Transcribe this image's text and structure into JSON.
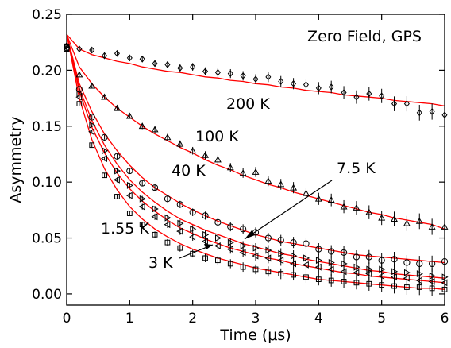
{
  "chart_data": {
    "type": "scatter",
    "title": "Zero Field, GPS",
    "xlabel": "Time (μs)",
    "ylabel": "Asymmetry",
    "xlim": [
      0,
      6
    ],
    "ylim": [
      -0.01,
      0.25
    ],
    "xticks": [
      "0",
      "1",
      "2",
      "3",
      "4",
      "5",
      "6"
    ],
    "yticks": [
      "0.00",
      "0.05",
      "0.10",
      "0.15",
      "0.20",
      "0.25"
    ],
    "grid": false,
    "fit_color": "#ff0000",
    "series": [
      {
        "name": "200 K",
        "marker": "diamond",
        "x": [
          0.0,
          0.2,
          0.4,
          0.6,
          0.8,
          1.0,
          1.2,
          1.4,
          1.6,
          1.8,
          2.0,
          2.2,
          2.4,
          2.6,
          2.8,
          3.0,
          3.2,
          3.4,
          3.6,
          3.8,
          4.0,
          4.2,
          4.4,
          4.6,
          4.8,
          5.0,
          5.2,
          5.4,
          5.6,
          5.8,
          6.0
        ],
        "y": [
          0.222,
          0.219,
          0.218,
          0.213,
          0.215,
          0.211,
          0.21,
          0.206,
          0.205,
          0.202,
          0.203,
          0.199,
          0.198,
          0.197,
          0.195,
          0.192,
          0.194,
          0.19,
          0.188,
          0.187,
          0.184,
          0.185,
          0.18,
          0.176,
          0.179,
          0.177,
          0.17,
          0.17,
          0.162,
          0.163,
          0.16
        ],
        "fit_y": [
          0.232,
          0.219,
          0.214,
          0.211,
          0.208,
          0.206,
          0.203,
          0.201,
          0.199,
          0.198,
          0.196,
          0.194,
          0.193,
          0.191,
          0.19,
          0.188,
          0.187,
          0.185,
          0.184,
          0.182,
          0.181,
          0.18,
          0.178,
          0.177,
          0.176,
          0.175,
          0.173,
          0.172,
          0.171,
          0.17,
          0.168
        ]
      },
      {
        "name": "100 K",
        "marker": "triangle-up",
        "x": [
          0.0,
          0.2,
          0.4,
          0.6,
          0.8,
          1.0,
          1.2,
          1.4,
          1.6,
          1.8,
          2.0,
          2.2,
          2.4,
          2.6,
          2.8,
          3.0,
          3.2,
          3.4,
          3.6,
          3.8,
          4.0,
          4.2,
          4.4,
          4.6,
          4.8,
          5.0,
          5.2,
          5.4,
          5.6,
          5.8,
          6.0
        ],
        "y": [
          0.222,
          0.196,
          0.186,
          0.176,
          0.166,
          0.159,
          0.15,
          0.147,
          0.14,
          0.134,
          0.128,
          0.124,
          0.12,
          0.113,
          0.108,
          0.109,
          0.101,
          0.098,
          0.095,
          0.09,
          0.085,
          0.084,
          0.078,
          0.077,
          0.073,
          0.068,
          0.067,
          0.063,
          0.065,
          0.06,
          0.06
        ],
        "fit_y": [
          0.232,
          0.203,
          0.188,
          0.176,
          0.166,
          0.158,
          0.15,
          0.143,
          0.137,
          0.131,
          0.126,
          0.12,
          0.115,
          0.111,
          0.106,
          0.102,
          0.098,
          0.095,
          0.091,
          0.088,
          0.085,
          0.082,
          0.079,
          0.076,
          0.073,
          0.071,
          0.068,
          0.066,
          0.064,
          0.062,
          0.058
        ]
      },
      {
        "name": "40 K",
        "marker": "circle",
        "x": [
          0.0,
          0.2,
          0.4,
          0.6,
          0.8,
          1.0,
          1.2,
          1.4,
          1.6,
          1.8,
          2.0,
          2.2,
          2.4,
          2.6,
          2.8,
          3.0,
          3.2,
          3.4,
          3.6,
          3.8,
          4.0,
          4.2,
          4.4,
          4.6,
          4.8,
          5.0,
          5.2,
          5.4,
          5.6,
          5.8,
          6.0
        ],
        "y": [
          0.22,
          0.183,
          0.158,
          0.14,
          0.123,
          0.11,
          0.099,
          0.095,
          0.085,
          0.08,
          0.073,
          0.07,
          0.064,
          0.06,
          0.058,
          0.055,
          0.05,
          0.048,
          0.046,
          0.045,
          0.04,
          0.038,
          0.037,
          0.033,
          0.033,
          0.03,
          0.031,
          0.028,
          0.027,
          0.027,
          0.029
        ],
        "fit_y": [
          0.232,
          0.188,
          0.163,
          0.143,
          0.128,
          0.115,
          0.104,
          0.095,
          0.088,
          0.081,
          0.075,
          0.07,
          0.065,
          0.061,
          0.057,
          0.053,
          0.05,
          0.047,
          0.045,
          0.043,
          0.041,
          0.039,
          0.037,
          0.035,
          0.034,
          0.033,
          0.032,
          0.031,
          0.03,
          0.029,
          0.028
        ]
      },
      {
        "name": "7.5 K",
        "marker": "triangle-right",
        "x": [
          0.0,
          0.2,
          0.4,
          0.6,
          0.8,
          1.0,
          1.2,
          1.4,
          1.6,
          1.8,
          2.0,
          2.2,
          2.4,
          2.6,
          2.8,
          3.0,
          3.2,
          3.4,
          3.6,
          3.8,
          4.0,
          4.2,
          4.4,
          4.6,
          4.8,
          5.0,
          5.2,
          5.4,
          5.6,
          5.8,
          6.0
        ],
        "y": [
          0.221,
          0.179,
          0.151,
          0.128,
          0.11,
          0.097,
          0.085,
          0.076,
          0.068,
          0.063,
          0.058,
          0.053,
          0.05,
          0.046,
          0.043,
          0.041,
          0.039,
          0.036,
          0.034,
          0.032,
          0.03,
          0.028,
          0.027,
          0.024,
          0.022,
          0.022,
          0.02,
          0.019,
          0.018,
          0.016,
          0.015
        ],
        "fit_y": [
          0.232,
          0.184,
          0.155,
          0.133,
          0.116,
          0.102,
          0.091,
          0.082,
          0.074,
          0.067,
          0.062,
          0.057,
          0.053,
          0.049,
          0.045,
          0.042,
          0.039,
          0.036,
          0.034,
          0.031,
          0.029,
          0.027,
          0.025,
          0.023,
          0.021,
          0.02,
          0.018,
          0.017,
          0.016,
          0.015,
          0.014
        ]
      },
      {
        "name": "1.55 K",
        "marker": "triangle-left",
        "x": [
          0.0,
          0.2,
          0.4,
          0.6,
          0.8,
          1.0,
          1.2,
          1.4,
          1.6,
          1.8,
          2.0,
          2.2,
          2.4,
          2.6,
          2.8,
          3.0,
          3.2,
          3.4,
          3.6,
          3.8,
          4.0,
          4.2,
          4.4,
          4.6,
          4.8,
          5.0,
          5.2,
          5.4,
          5.6,
          5.8,
          6.0
        ],
        "y": [
          0.22,
          0.176,
          0.145,
          0.121,
          0.102,
          0.088,
          0.078,
          0.069,
          0.062,
          0.056,
          0.051,
          0.047,
          0.043,
          0.04,
          0.037,
          0.034,
          0.032,
          0.03,
          0.027,
          0.026,
          0.024,
          0.022,
          0.02,
          0.019,
          0.018,
          0.016,
          0.015,
          0.014,
          0.012,
          0.011,
          0.01
        ],
        "fit_y": [
          0.232,
          0.181,
          0.149,
          0.126,
          0.108,
          0.094,
          0.083,
          0.074,
          0.066,
          0.059,
          0.054,
          0.049,
          0.045,
          0.041,
          0.038,
          0.035,
          0.032,
          0.03,
          0.027,
          0.025,
          0.023,
          0.021,
          0.019,
          0.018,
          0.016,
          0.015,
          0.014,
          0.013,
          0.012,
          0.011,
          0.01
        ]
      },
      {
        "name": "3 K",
        "marker": "square",
        "x": [
          0.0,
          0.2,
          0.4,
          0.6,
          0.8,
          1.0,
          1.2,
          1.4,
          1.6,
          1.8,
          2.0,
          2.2,
          2.4,
          2.6,
          2.8,
          3.0,
          3.2,
          3.4,
          3.6,
          3.8,
          4.0,
          4.2,
          4.4,
          4.6,
          4.8,
          5.0,
          5.2,
          5.4,
          5.6,
          5.8,
          6.0
        ],
        "y": [
          0.219,
          0.17,
          0.133,
          0.106,
          0.087,
          0.072,
          0.062,
          0.053,
          0.046,
          0.041,
          0.036,
          0.032,
          0.03,
          0.027,
          0.024,
          0.022,
          0.02,
          0.018,
          0.017,
          0.015,
          0.013,
          0.012,
          0.011,
          0.01,
          0.009,
          0.008,
          0.007,
          0.006,
          0.006,
          0.005,
          0.004
        ],
        "fit_y": [
          0.232,
          0.175,
          0.138,
          0.112,
          0.093,
          0.078,
          0.067,
          0.058,
          0.051,
          0.045,
          0.04,
          0.036,
          0.032,
          0.029,
          0.026,
          0.023,
          0.021,
          0.019,
          0.017,
          0.015,
          0.013,
          0.012,
          0.011,
          0.01,
          0.009,
          0.008,
          0.007,
          0.006,
          0.005,
          0.005,
          0.004
        ]
      }
    ],
    "annotations": [
      {
        "text": "200 K"
      },
      {
        "text": "100 K"
      },
      {
        "text": "40 K"
      },
      {
        "text": "7.5 K"
      },
      {
        "text": "1.55 K"
      },
      {
        "text": "3 K"
      }
    ]
  }
}
